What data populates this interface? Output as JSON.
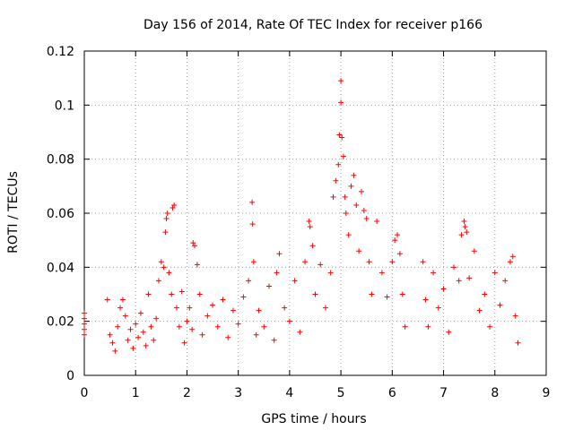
{
  "chart_data": {
    "type": "scatter",
    "title": "Day 156 of 2014, Rate Of TEC Index for receiver p166",
    "xlabel": "GPS time / hours",
    "ylabel": "ROTI / TECUs",
    "xlim": [
      0,
      9
    ],
    "ylim": [
      0,
      0.12
    ],
    "x_ticks": [
      0,
      1,
      2,
      3,
      4,
      5,
      6,
      7,
      8,
      9
    ],
    "x_tick_labels": [
      "0",
      "1",
      "2",
      "3",
      "4",
      "5",
      "6",
      "7",
      "8",
      "9"
    ],
    "y_ticks": [
      0,
      0.02,
      0.04,
      0.06,
      0.08,
      0.1,
      0.12
    ],
    "y_tick_labels": [
      "0",
      "0.02",
      "0.04",
      "0.06",
      "0.08",
      "0.1",
      "0.12"
    ],
    "grid": true,
    "marker": "+",
    "series_color": "#ff0000",
    "series": [
      {
        "name": "ROTI",
        "points": [
          [
            0.0,
            0.023
          ],
          [
            0.0,
            0.021
          ],
          [
            0.0,
            0.019
          ],
          [
            0.0,
            0.017
          ],
          [
            0.0,
            0.015
          ],
          [
            0.45,
            0.028
          ],
          [
            0.5,
            0.015
          ],
          [
            0.55,
            0.012
          ],
          [
            0.6,
            0.009
          ],
          [
            0.65,
            0.018
          ],
          [
            0.7,
            0.025
          ],
          [
            0.75,
            0.028
          ],
          [
            0.8,
            0.022
          ],
          [
            0.85,
            0.013
          ],
          [
            0.9,
            0.017
          ],
          [
            0.95,
            0.01
          ],
          [
            1.0,
            0.019
          ],
          [
            1.05,
            0.014
          ],
          [
            1.1,
            0.023
          ],
          [
            1.15,
            0.016
          ],
          [
            1.2,
            0.011
          ],
          [
            1.25,
            0.03
          ],
          [
            1.3,
            0.018
          ],
          [
            1.35,
            0.013
          ],
          [
            1.4,
            0.021
          ],
          [
            1.45,
            0.035
          ],
          [
            1.5,
            0.042
          ],
          [
            1.55,
            0.04
          ],
          [
            1.58,
            0.053
          ],
          [
            1.6,
            0.058
          ],
          [
            1.62,
            0.06
          ],
          [
            1.65,
            0.038
          ],
          [
            1.7,
            0.03
          ],
          [
            1.72,
            0.062
          ],
          [
            1.75,
            0.063
          ],
          [
            1.8,
            0.025
          ],
          [
            1.85,
            0.018
          ],
          [
            1.9,
            0.031
          ],
          [
            1.95,
            0.012
          ],
          [
            2.0,
            0.02
          ],
          [
            2.05,
            0.025
          ],
          [
            2.1,
            0.017
          ],
          [
            2.12,
            0.049
          ],
          [
            2.15,
            0.048
          ],
          [
            2.2,
            0.041
          ],
          [
            2.25,
            0.03
          ],
          [
            2.3,
            0.015
          ],
          [
            2.4,
            0.022
          ],
          [
            2.5,
            0.026
          ],
          [
            2.6,
            0.018
          ],
          [
            2.7,
            0.028
          ],
          [
            2.8,
            0.014
          ],
          [
            2.9,
            0.024
          ],
          [
            3.0,
            0.019
          ],
          [
            3.1,
            0.029
          ],
          [
            3.2,
            0.035
          ],
          [
            3.27,
            0.064
          ],
          [
            3.28,
            0.056
          ],
          [
            3.3,
            0.042
          ],
          [
            3.35,
            0.015
          ],
          [
            3.4,
            0.024
          ],
          [
            3.5,
            0.018
          ],
          [
            3.6,
            0.033
          ],
          [
            3.7,
            0.013
          ],
          [
            3.75,
            0.038
          ],
          [
            3.8,
            0.045
          ],
          [
            3.9,
            0.025
          ],
          [
            4.0,
            0.02
          ],
          [
            4.1,
            0.035
          ],
          [
            4.2,
            0.016
          ],
          [
            4.3,
            0.042
          ],
          [
            4.38,
            0.057
          ],
          [
            4.4,
            0.055
          ],
          [
            4.45,
            0.048
          ],
          [
            4.5,
            0.03
          ],
          [
            4.6,
            0.041
          ],
          [
            4.7,
            0.025
          ],
          [
            4.8,
            0.038
          ],
          [
            4.85,
            0.066
          ],
          [
            4.9,
            0.072
          ],
          [
            4.95,
            0.078
          ],
          [
            4.97,
            0.089
          ],
          [
            5.0,
            0.101
          ],
          [
            5.0,
            0.109
          ],
          [
            5.02,
            0.088
          ],
          [
            5.05,
            0.081
          ],
          [
            5.08,
            0.066
          ],
          [
            5.1,
            0.06
          ],
          [
            5.15,
            0.052
          ],
          [
            5.2,
            0.07
          ],
          [
            5.25,
            0.074
          ],
          [
            5.3,
            0.063
          ],
          [
            5.35,
            0.046
          ],
          [
            5.4,
            0.068
          ],
          [
            5.45,
            0.061
          ],
          [
            5.5,
            0.058
          ],
          [
            5.55,
            0.042
          ],
          [
            5.6,
            0.03
          ],
          [
            5.7,
            0.057
          ],
          [
            5.8,
            0.038
          ],
          [
            5.9,
            0.029
          ],
          [
            6.0,
            0.042
          ],
          [
            6.05,
            0.05
          ],
          [
            6.1,
            0.052
          ],
          [
            6.15,
            0.045
          ],
          [
            6.2,
            0.03
          ],
          [
            6.25,
            0.018
          ],
          [
            6.6,
            0.042
          ],
          [
            6.65,
            0.028
          ],
          [
            6.7,
            0.018
          ],
          [
            6.8,
            0.038
          ],
          [
            6.9,
            0.025
          ],
          [
            7.0,
            0.032
          ],
          [
            7.1,
            0.016
          ],
          [
            7.2,
            0.04
          ],
          [
            7.3,
            0.035
          ],
          [
            7.35,
            0.052
          ],
          [
            7.4,
            0.057
          ],
          [
            7.42,
            0.055
          ],
          [
            7.45,
            0.053
          ],
          [
            7.5,
            0.036
          ],
          [
            7.6,
            0.046
          ],
          [
            7.7,
            0.024
          ],
          [
            7.8,
            0.03
          ],
          [
            7.9,
            0.018
          ],
          [
            8.0,
            0.038
          ],
          [
            8.1,
            0.026
          ],
          [
            8.2,
            0.035
          ],
          [
            8.3,
            0.042
          ],
          [
            8.35,
            0.044
          ],
          [
            8.4,
            0.022
          ],
          [
            8.45,
            0.012
          ]
        ]
      }
    ]
  }
}
